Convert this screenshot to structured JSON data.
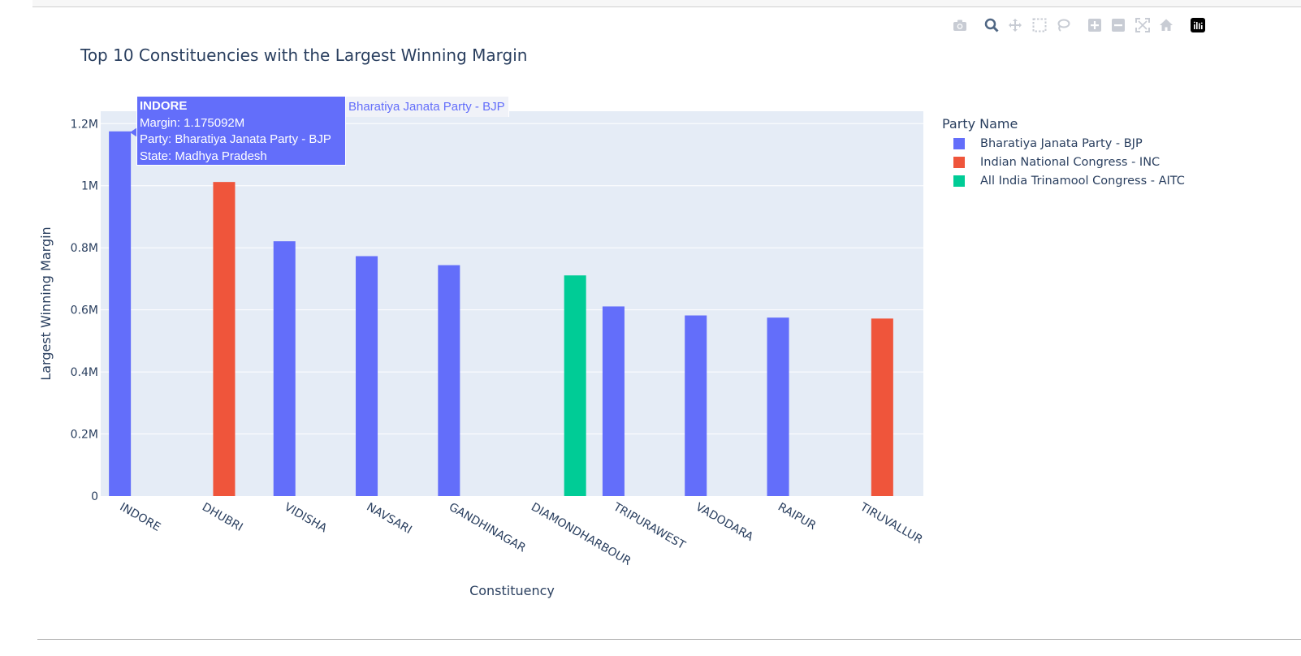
{
  "chart_data": {
    "type": "bar",
    "title": "Top 10 Constituencies with the Largest Winning Margin",
    "xlabel": "Constituency",
    "ylabel": "Largest Winning Margin",
    "ylim": [
      0,
      1.24
    ],
    "yticks": [
      {
        "value": 0,
        "label": "0"
      },
      {
        "value": 0.2,
        "label": "0.2M"
      },
      {
        "value": 0.4,
        "label": "0.4M"
      },
      {
        "value": 0.6,
        "label": "0.6M"
      },
      {
        "value": 0.8,
        "label": "0.8M"
      },
      {
        "value": 1.0,
        "label": "1M"
      },
      {
        "value": 1.2,
        "label": "1.2M"
      }
    ],
    "categories": [
      "INDORE",
      "DHUBRI",
      "VIDISHA",
      "NAVSARI",
      "GANDHINAGAR",
      "DIAMONDHARBOUR",
      "TRIPURAWEST",
      "VADODARA",
      "RAIPUR",
      "TIRUVALLUR"
    ],
    "series": [
      {
        "name": "Bharatiya Janata Party - BJP",
        "color": "#636efa",
        "values": [
          1.175092,
          null,
          0.821,
          0.773,
          0.744,
          null,
          0.611,
          0.582,
          0.575,
          null
        ]
      },
      {
        "name": "Indian National Congress - INC",
        "color": "#ef553b",
        "values": [
          null,
          1.012,
          null,
          null,
          null,
          null,
          null,
          null,
          null,
          0.572
        ]
      },
      {
        "name": "All India Trinamool Congress - AITC",
        "color": "#00cc96",
        "values": [
          null,
          null,
          null,
          null,
          null,
          0.711,
          null,
          null,
          null,
          null
        ]
      }
    ],
    "legend_title": "Party Name",
    "legend_position": "right",
    "grid": true
  },
  "hover": {
    "title": "INDORE",
    "line1": "Margin: 1.175092M",
    "line2": "Party: Bharatiya Janata Party - BJP",
    "line3": "State: Madhya Pradesh",
    "trace_name": "Bharatiya Janata Party - BJP"
  },
  "modebar": [
    "camera-icon",
    "zoom-icon",
    "pan-icon",
    "box-select-icon",
    "lasso-icon",
    "zoom-in-icon",
    "zoom-out-icon",
    "autoscale-icon",
    "reset-axes-icon",
    "plotly-logo-icon"
  ]
}
